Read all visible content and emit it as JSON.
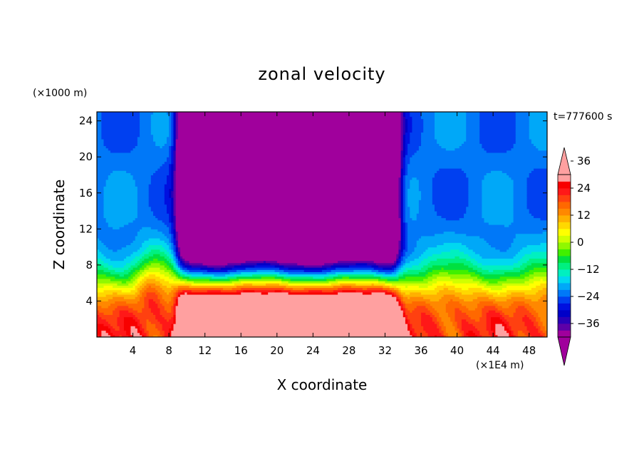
{
  "chart_data": {
    "type": "heatmap",
    "title": "zonal velocity",
    "xlabel": "X coordinate",
    "ylabel": "Z coordinate",
    "x_unit": "(×1E4 m)",
    "y_unit": "(×1000 m)",
    "time_label": "t=777600 s",
    "xlim": [
      0,
      50
    ],
    "ylim": [
      0,
      25
    ],
    "x_ticks": [
      4,
      8,
      12,
      16,
      20,
      24,
      28,
      32,
      36,
      40,
      44,
      48
    ],
    "y_ticks": [
      4,
      8,
      12,
      16,
      20,
      24
    ],
    "colorbar": {
      "levels_min": -42,
      "levels_step": 3,
      "tick_labels": [
        "36",
        "24",
        "12",
        "0",
        "−12",
        "−24",
        "−36"
      ],
      "tick_values": [
        36,
        24,
        12,
        0,
        -12,
        -24,
        -36
      ],
      "colors": [
        "#a0009c",
        "#5d00a8",
        "#2a00b8",
        "#0000c8",
        "#0010e0",
        "#0040f0",
        "#0078f8",
        "#00a8f8",
        "#00d8f0",
        "#00f0c0",
        "#00f080",
        "#00e040",
        "#40f000",
        "#90f800",
        "#d0ff00",
        "#ffff00",
        "#ffd800",
        "#ffb000",
        "#ff8800",
        "#ff6800",
        "#ff4010",
        "#ff1818",
        "#f80000",
        "#ffa0a0"
      ],
      "under_color": "#a0009c",
      "over_color": "#ffa0a0"
    }
  }
}
